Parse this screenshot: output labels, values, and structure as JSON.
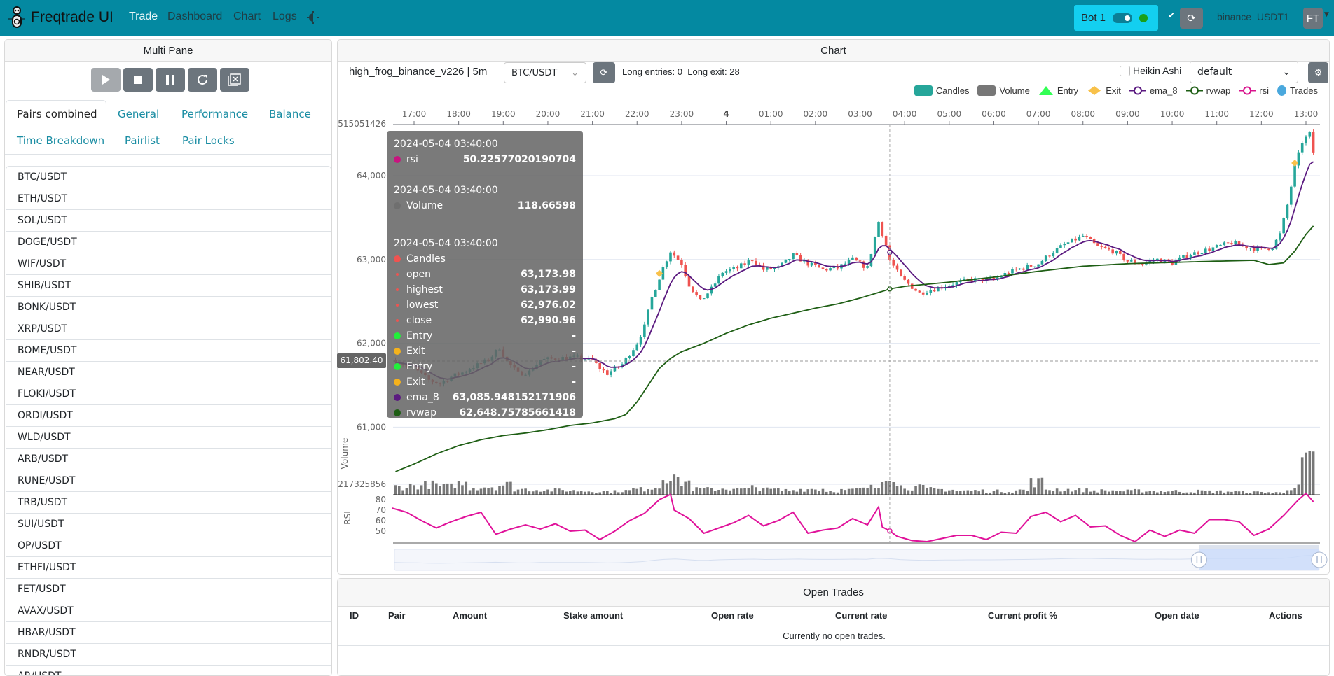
{
  "navbar": {
    "brand": "Freqtrade UI",
    "links": [
      "Trade",
      "Dashboard",
      "Chart",
      "Logs"
    ],
    "bot_name": "Bot 1",
    "exchange": "binance_USDT1",
    "avatar": "FT",
    "bg": "#0489a1"
  },
  "left": {
    "title": "Multi Pane",
    "controls": [
      "play-icon",
      "stop-icon",
      "pause-icon",
      "reload-icon",
      "force-exit-icon"
    ],
    "tabs": [
      "Pairs combined",
      "General",
      "Performance",
      "Balance",
      "Time Breakdown",
      "Pairlist",
      "Pair Locks"
    ],
    "active_tab": "Pairs combined",
    "pairs": [
      "BTC/USDT",
      "ETH/USDT",
      "SOL/USDT",
      "DOGE/USDT",
      "WIF/USDT",
      "SHIB/USDT",
      "BONK/USDT",
      "XRP/USDT",
      "BOME/USDT",
      "NEAR/USDT",
      "FLOKI/USDT",
      "ORDI/USDT",
      "WLD/USDT",
      "ARB/USDT",
      "RUNE/USDT",
      "TRB/USDT",
      "SUI/USDT",
      "OP/USDT",
      "ETHFI/USDT",
      "FET/USDT",
      "AVAX/USDT",
      "HBAR/USDT",
      "RNDR/USDT",
      "AR/USDT"
    ]
  },
  "chart": {
    "title": "Chart",
    "strategy": "high_frog_binance_v226 | 5m",
    "pair": "BTC/USDT",
    "signals": "Long entries: 0  Long exit: 28",
    "heikin_ashi_label": "Heikin Ashi",
    "heikin_ashi": false,
    "layout": "default",
    "legend": [
      {
        "name": "Candles",
        "color": "#26a69a"
      },
      {
        "name": "Volume",
        "color": "#777777"
      },
      {
        "name": "Entry",
        "color": "#33ff55"
      },
      {
        "name": "Exit",
        "color": "#f8c14a"
      },
      {
        "name": "ema_8",
        "color": "#5b1a80"
      },
      {
        "name": "rvwap",
        "color": "#1e5e14"
      },
      {
        "name": "rsi",
        "color": "#d8148d"
      },
      {
        "name": "Trades",
        "color": "#4aa8dd"
      }
    ],
    "crosshair_price": "61,802.40",
    "tooltip": {
      "time": "2024-05-04 03:40:00",
      "rsi": "50.22577020190704",
      "volume": "118.66598",
      "open": "63,173.98",
      "highest": "63,173.99",
      "lowest": "62,976.02",
      "close": "62,990.96",
      "entry": "-",
      "exit": "-",
      "entry2": "-",
      "exit2": "-",
      "ema_8": "63,085.948152171906",
      "rvwap": "62,648.75785661418",
      "labels": {
        "rsi": "rsi",
        "volume": "Volume",
        "candles": "Candles",
        "open": "open",
        "highest": "highest",
        "lowest": "lowest",
        "close": "close",
        "entry": "Entry",
        "exit": "Exit",
        "ema_8": "ema_8",
        "rvwap": "rvwap"
      }
    }
  },
  "chart_data": {
    "type": "candlestick",
    "x_ticks": [
      "17:00",
      "18:00",
      "19:00",
      "20:00",
      "21:00",
      "22:00",
      "23:00",
      "4",
      "01:00",
      "02:00",
      "03:00",
      "04:00",
      "05:00",
      "06:00",
      "07:00",
      "08:00",
      "09:00",
      "10:00",
      "11:00",
      "12:00",
      "13:00"
    ],
    "y_ticks": [
      "64,000",
      "63,000",
      "62,000",
      "61,000"
    ],
    "volume_axis_labels": [
      "515051426",
      "217325856"
    ],
    "volume_ylabel": "Volume",
    "rsi_ylabel": "RSI",
    "rsi_ticks": [
      "80",
      "70",
      "60",
      "50"
    ],
    "crosshair_time": "03:40",
    "price_path": [
      [
        "16:35",
        61800
      ],
      [
        "16:50",
        61720
      ],
      [
        "17:00",
        61700
      ],
      [
        "17:20",
        61560
      ],
      [
        "17:35",
        61520
      ],
      [
        "17:50",
        61600
      ],
      [
        "18:05",
        61650
      ],
      [
        "18:20",
        61720
      ],
      [
        "18:40",
        61800
      ],
      [
        "18:55",
        61950
      ],
      [
        "19:05",
        61780
      ],
      [
        "19:20",
        61640
      ],
      [
        "19:35",
        61660
      ],
      [
        "19:50",
        61800
      ],
      [
        "20:10",
        61820
      ],
      [
        "20:30",
        61830
      ],
      [
        "20:45",
        61820
      ],
      [
        "21:00",
        61800
      ],
      [
        "21:10",
        61700
      ],
      [
        "21:20",
        61640
      ],
      [
        "21:40",
        61750
      ],
      [
        "22:00",
        62000
      ],
      [
        "22:10",
        62200
      ],
      [
        "22:20",
        62550
      ],
      [
        "22:35",
        62900
      ],
      [
        "22:45",
        63100
      ],
      [
        "23:00",
        62950
      ],
      [
        "23:10",
        62700
      ],
      [
        "23:25",
        62500
      ],
      [
        "23:40",
        62650
      ],
      [
        "23:55",
        62850
      ],
      [
        "00:15",
        62900
      ],
      [
        "00:35",
        63000
      ],
      [
        "00:50",
        62880
      ],
      [
        "01:10",
        62900
      ],
      [
        "01:30",
        63050
      ],
      [
        "01:50",
        62950
      ],
      [
        "02:10",
        62880
      ],
      [
        "02:30",
        62900
      ],
      [
        "02:50",
        63000
      ],
      [
        "03:10",
        62900
      ],
      [
        "03:25",
        63450
      ],
      [
        "03:35",
        63170
      ],
      [
        "03:40",
        62990
      ],
      [
        "03:55",
        62780
      ],
      [
        "04:20",
        62600
      ],
      [
        "04:40",
        62650
      ],
      [
        "05:00",
        62700
      ],
      [
        "05:30",
        62760
      ],
      [
        "06:00",
        62760
      ],
      [
        "06:20",
        62850
      ],
      [
        "06:40",
        62900
      ],
      [
        "07:00",
        62950
      ],
      [
        "07:20",
        63100
      ],
      [
        "07:40",
        63200
      ],
      [
        "08:00",
        63280
      ],
      [
        "08:20",
        63150
      ],
      [
        "08:40",
        63100
      ],
      [
        "09:00",
        62980
      ],
      [
        "09:20",
        62950
      ],
      [
        "09:40",
        63000
      ],
      [
        "10:00",
        62960
      ],
      [
        "10:20",
        63050
      ],
      [
        "10:40",
        63100
      ],
      [
        "11:00",
        63150
      ],
      [
        "11:20",
        63200
      ],
      [
        "11:40",
        63150
      ],
      [
        "12:00",
        63120
      ],
      [
        "12:15",
        63150
      ],
      [
        "12:25",
        63300
      ],
      [
        "12:35",
        63650
      ],
      [
        "12:45",
        64100
      ],
      [
        "12:55",
        64400
      ],
      [
        "13:05",
        64500
      ],
      [
        "13:10",
        64280
      ]
    ],
    "rvwap": [
      [
        "16:35",
        60470
      ],
      [
        "17:00",
        60560
      ],
      [
        "17:30",
        60680
      ],
      [
        "18:00",
        60780
      ],
      [
        "18:30",
        60850
      ],
      [
        "19:00",
        60900
      ],
      [
        "19:30",
        60930
      ],
      [
        "20:00",
        60970
      ],
      [
        "20:30",
        61020
      ],
      [
        "21:00",
        61050
      ],
      [
        "21:30",
        61100
      ],
      [
        "21:45",
        61150
      ],
      [
        "22:00",
        61300
      ],
      [
        "22:15",
        61500
      ],
      [
        "22:30",
        61700
      ],
      [
        "22:45",
        61820
      ],
      [
        "23:00",
        61900
      ],
      [
        "23:30",
        62000
      ],
      [
        "00:00",
        62120
      ],
      [
        "00:30",
        62220
      ],
      [
        "01:00",
        62300
      ],
      [
        "01:30",
        62360
      ],
      [
        "02:00",
        62420
      ],
      [
        "02:30",
        62470
      ],
      [
        "03:00",
        62540
      ],
      [
        "03:30",
        62620
      ],
      [
        "03:40",
        62649
      ],
      [
        "04:00",
        62680
      ],
      [
        "05:00",
        62730
      ],
      [
        "06:00",
        62790
      ],
      [
        "07:00",
        62860
      ],
      [
        "08:00",
        62920
      ],
      [
        "09:00",
        62950
      ],
      [
        "10:00",
        62965
      ],
      [
        "11:00",
        62980
      ],
      [
        "11:50",
        62990
      ],
      [
        "12:10",
        62940
      ],
      [
        "12:30",
        62960
      ],
      [
        "12:45",
        63100
      ],
      [
        "13:00",
        63300
      ],
      [
        "13:10",
        63400
      ]
    ],
    "rsi": [
      [
        "16:30",
        72
      ],
      [
        "16:50",
        68
      ],
      [
        "17:10",
        60
      ],
      [
        "17:30",
        53
      ],
      [
        "17:50",
        59
      ],
      [
        "18:10",
        64
      ],
      [
        "18:30",
        68
      ],
      [
        "18:50",
        47
      ],
      [
        "19:10",
        52
      ],
      [
        "19:30",
        56
      ],
      [
        "19:50",
        52
      ],
      [
        "20:10",
        57
      ],
      [
        "20:30",
        50
      ],
      [
        "20:50",
        51
      ],
      [
        "21:10",
        42
      ],
      [
        "21:30",
        50
      ],
      [
        "21:50",
        60
      ],
      [
        "22:10",
        67
      ],
      [
        "22:30",
        80
      ],
      [
        "22:45",
        85
      ],
      [
        "22:50",
        70
      ],
      [
        "23:10",
        62
      ],
      [
        "23:30",
        48
      ],
      [
        "23:50",
        53
      ],
      [
        "00:10",
        58
      ],
      [
        "00:30",
        65
      ],
      [
        "00:50",
        55
      ],
      [
        "01:10",
        60
      ],
      [
        "01:30",
        68
      ],
      [
        "01:50",
        48
      ],
      [
        "02:10",
        51
      ],
      [
        "02:30",
        53
      ],
      [
        "02:50",
        62
      ],
      [
        "03:10",
        56
      ],
      [
        "03:25",
        73
      ],
      [
        "03:30",
        54
      ],
      [
        "03:40",
        50.2
      ],
      [
        "03:50",
        45
      ],
      [
        "04:10",
        41
      ],
      [
        "04:30",
        40
      ],
      [
        "04:50",
        43
      ],
      [
        "05:10",
        46
      ],
      [
        "05:30",
        46
      ],
      [
        "05:50",
        42
      ],
      [
        "06:10",
        49
      ],
      [
        "06:30",
        48
      ],
      [
        "06:50",
        64
      ],
      [
        "07:10",
        68
      ],
      [
        "07:30",
        59
      ],
      [
        "07:50",
        65
      ],
      [
        "08:10",
        54
      ],
      [
        "08:30",
        55
      ],
      [
        "08:50",
        46
      ],
      [
        "09:10",
        40
      ],
      [
        "09:30",
        51
      ],
      [
        "09:50",
        45
      ],
      [
        "10:10",
        51
      ],
      [
        "10:30",
        48
      ],
      [
        "10:50",
        61
      ],
      [
        "11:10",
        61
      ],
      [
        "11:30",
        59
      ],
      [
        "11:50",
        46
      ],
      [
        "12:10",
        52
      ],
      [
        "12:30",
        65
      ],
      [
        "12:50",
        80
      ],
      [
        "13:00",
        86
      ],
      [
        "13:10",
        78
      ]
    ],
    "volume_20min": [
      45,
      50,
      55,
      45,
      60,
      40,
      45,
      55,
      30,
      28,
      25,
      25,
      22,
      20,
      18,
      22,
      30,
      40,
      110,
      70,
      30,
      30,
      35,
      30,
      40,
      28,
      25,
      30,
      32,
      22,
      25,
      30,
      40,
      120,
      45,
      40,
      30,
      28,
      22,
      22,
      20,
      20,
      25,
      70,
      30,
      28,
      25,
      22,
      22,
      20,
      22,
      20,
      20,
      18,
      20,
      18,
      18,
      16,
      14,
      12,
      40,
      180,
      80
    ],
    "exit_markers": [
      "22:30",
      "12:45"
    ],
    "zoom_range_percent": [
      87,
      100
    ]
  },
  "open_trades": {
    "title": "Open Trades",
    "columns": [
      "ID",
      "Pair",
      "Amount",
      "Stake amount",
      "Open rate",
      "Current rate",
      "Current profit %",
      "Open date",
      "Actions"
    ],
    "empty": "Currently no open trades."
  }
}
